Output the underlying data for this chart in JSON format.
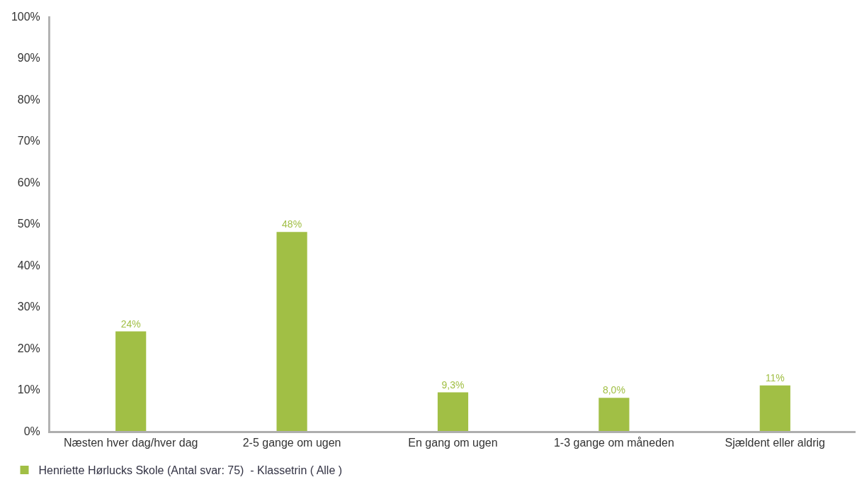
{
  "chart_data": {
    "type": "bar",
    "categories": [
      "Næsten hver dag/hver dag",
      "2-5 gange om ugen",
      "En gang om ugen",
      "1-3 gange om måneden",
      "Sjældent eller aldrig"
    ],
    "series": [
      {
        "name": "Henriette Hørlucks Skole (Antal svar: 75)  - Klassetrin ( Alle )",
        "color": "#a1bf45",
        "values": [
          24,
          48,
          9.3,
          8.0,
          11
        ],
        "value_labels": [
          "24%",
          "48%",
          "9,3%",
          "8,0%",
          "11%"
        ]
      }
    ],
    "ylim": [
      0,
      100
    ],
    "yticks": [
      {
        "value": 0,
        "label": "0%"
      },
      {
        "value": 10,
        "label": "10%"
      },
      {
        "value": 20,
        "label": "20%"
      },
      {
        "value": 30,
        "label": "30%"
      },
      {
        "value": 40,
        "label": "40%"
      },
      {
        "value": 50,
        "label": "50%"
      },
      {
        "value": 60,
        "label": "60%"
      },
      {
        "value": 70,
        "label": "70%"
      },
      {
        "value": 80,
        "label": "80%"
      },
      {
        "value": 90,
        "label": "90%"
      },
      {
        "value": 100,
        "label": "100%"
      }
    ],
    "grid": false,
    "legend": "bottom left"
  }
}
